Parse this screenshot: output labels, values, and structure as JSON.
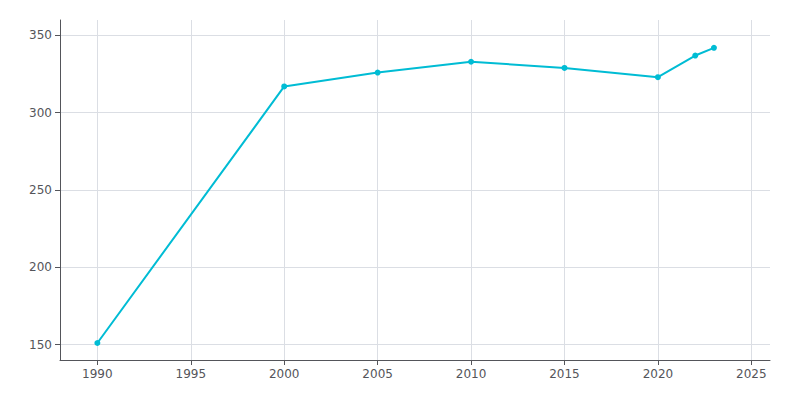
{
  "chart_data": {
    "type": "line",
    "x": [
      1990,
      2000,
      2005,
      2010,
      2015,
      2020,
      2022,
      2023
    ],
    "values": [
      151,
      317,
      326,
      333,
      329,
      323,
      337,
      342
    ],
    "color": "#00BCD4",
    "marker": "circle",
    "xlim": [
      1988,
      2026
    ],
    "xticks": [
      1990,
      1995,
      2000,
      2005,
      2010,
      2015,
      2020,
      2025
    ],
    "ylim": [
      140,
      360
    ],
    "yticks": [
      150,
      200,
      250,
      300,
      350
    ],
    "grid": true
  }
}
